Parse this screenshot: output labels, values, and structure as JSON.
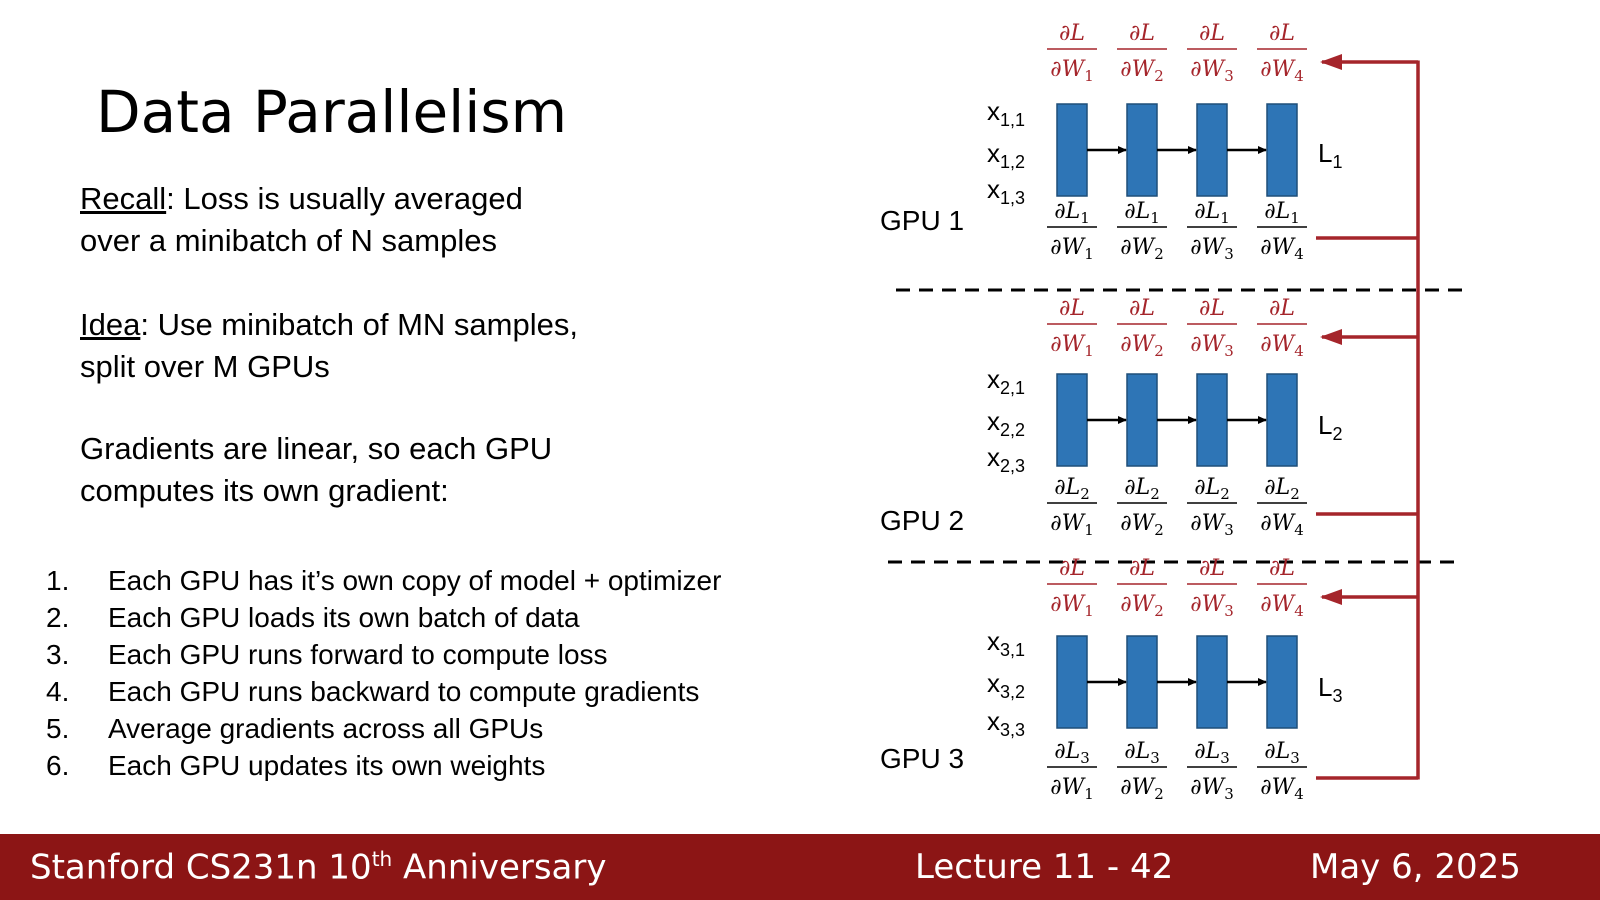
{
  "slide": {
    "title": "Data Parallelism",
    "recall_label": "Recall",
    "recall_text_line1": ": Loss is usually averaged",
    "recall_text_line2": "over a minibatch of N samples",
    "idea_label": "Idea",
    "idea_text_line1": ": Use minibatch of MN samples,",
    "idea_text_line2": "split over M GPUs",
    "grad_line1": "Gradients are linear, so each GPU",
    "grad_line2": "computes its own gradient:",
    "steps": [
      {
        "num": "1.",
        "text": "Each GPU has it’s own copy of model + optimizer"
      },
      {
        "num": "2.",
        "text": "Each GPU loads its own batch of data"
      },
      {
        "num": "3.",
        "text": "Each GPU runs forward to compute loss"
      },
      {
        "num": "4.",
        "text": "Each GPU runs backward to compute gradients"
      },
      {
        "num": "5.",
        "text": "Average gradients across all GPUs"
      },
      {
        "num": "6.",
        "text": "Each GPU updates its own weights"
      }
    ]
  },
  "diagram": {
    "colors": {
      "block": "#2e75b6",
      "block_border": "#1f4e79",
      "red": "#a5252b",
      "black": "#000000"
    },
    "partial": "∂",
    "loss_symbol": "L",
    "weight_symbol": "W",
    "weights": [
      "1",
      "2",
      "3",
      "4"
    ],
    "gpus": [
      {
        "label": "GPU 1",
        "loss_label": "L",
        "loss_sub": "1",
        "inputs": [
          {
            "x": "x",
            "sub": "1,1"
          },
          {
            "x": "x",
            "sub": "1,2"
          },
          {
            "x": "x",
            "sub": "1,3"
          }
        ]
      },
      {
        "label": "GPU 2",
        "loss_label": "L",
        "loss_sub": "2",
        "inputs": [
          {
            "x": "x",
            "sub": "2,1"
          },
          {
            "x": "x",
            "sub": "2,2"
          },
          {
            "x": "x",
            "sub": "2,3"
          }
        ]
      },
      {
        "label": "GPU 3",
        "loss_label": "L",
        "loss_sub": "3",
        "inputs": [
          {
            "x": "x",
            "sub": "3,1"
          },
          {
            "x": "x",
            "sub": "3,2"
          },
          {
            "x": "x",
            "sub": "3,3"
          }
        ]
      }
    ]
  },
  "footer": {
    "course": "Stanford CS231n 10",
    "course_sup": "th",
    "course_suffix": " Anniversary",
    "lecture": "Lecture 11 -  42",
    "date": "May 6, 2025"
  }
}
